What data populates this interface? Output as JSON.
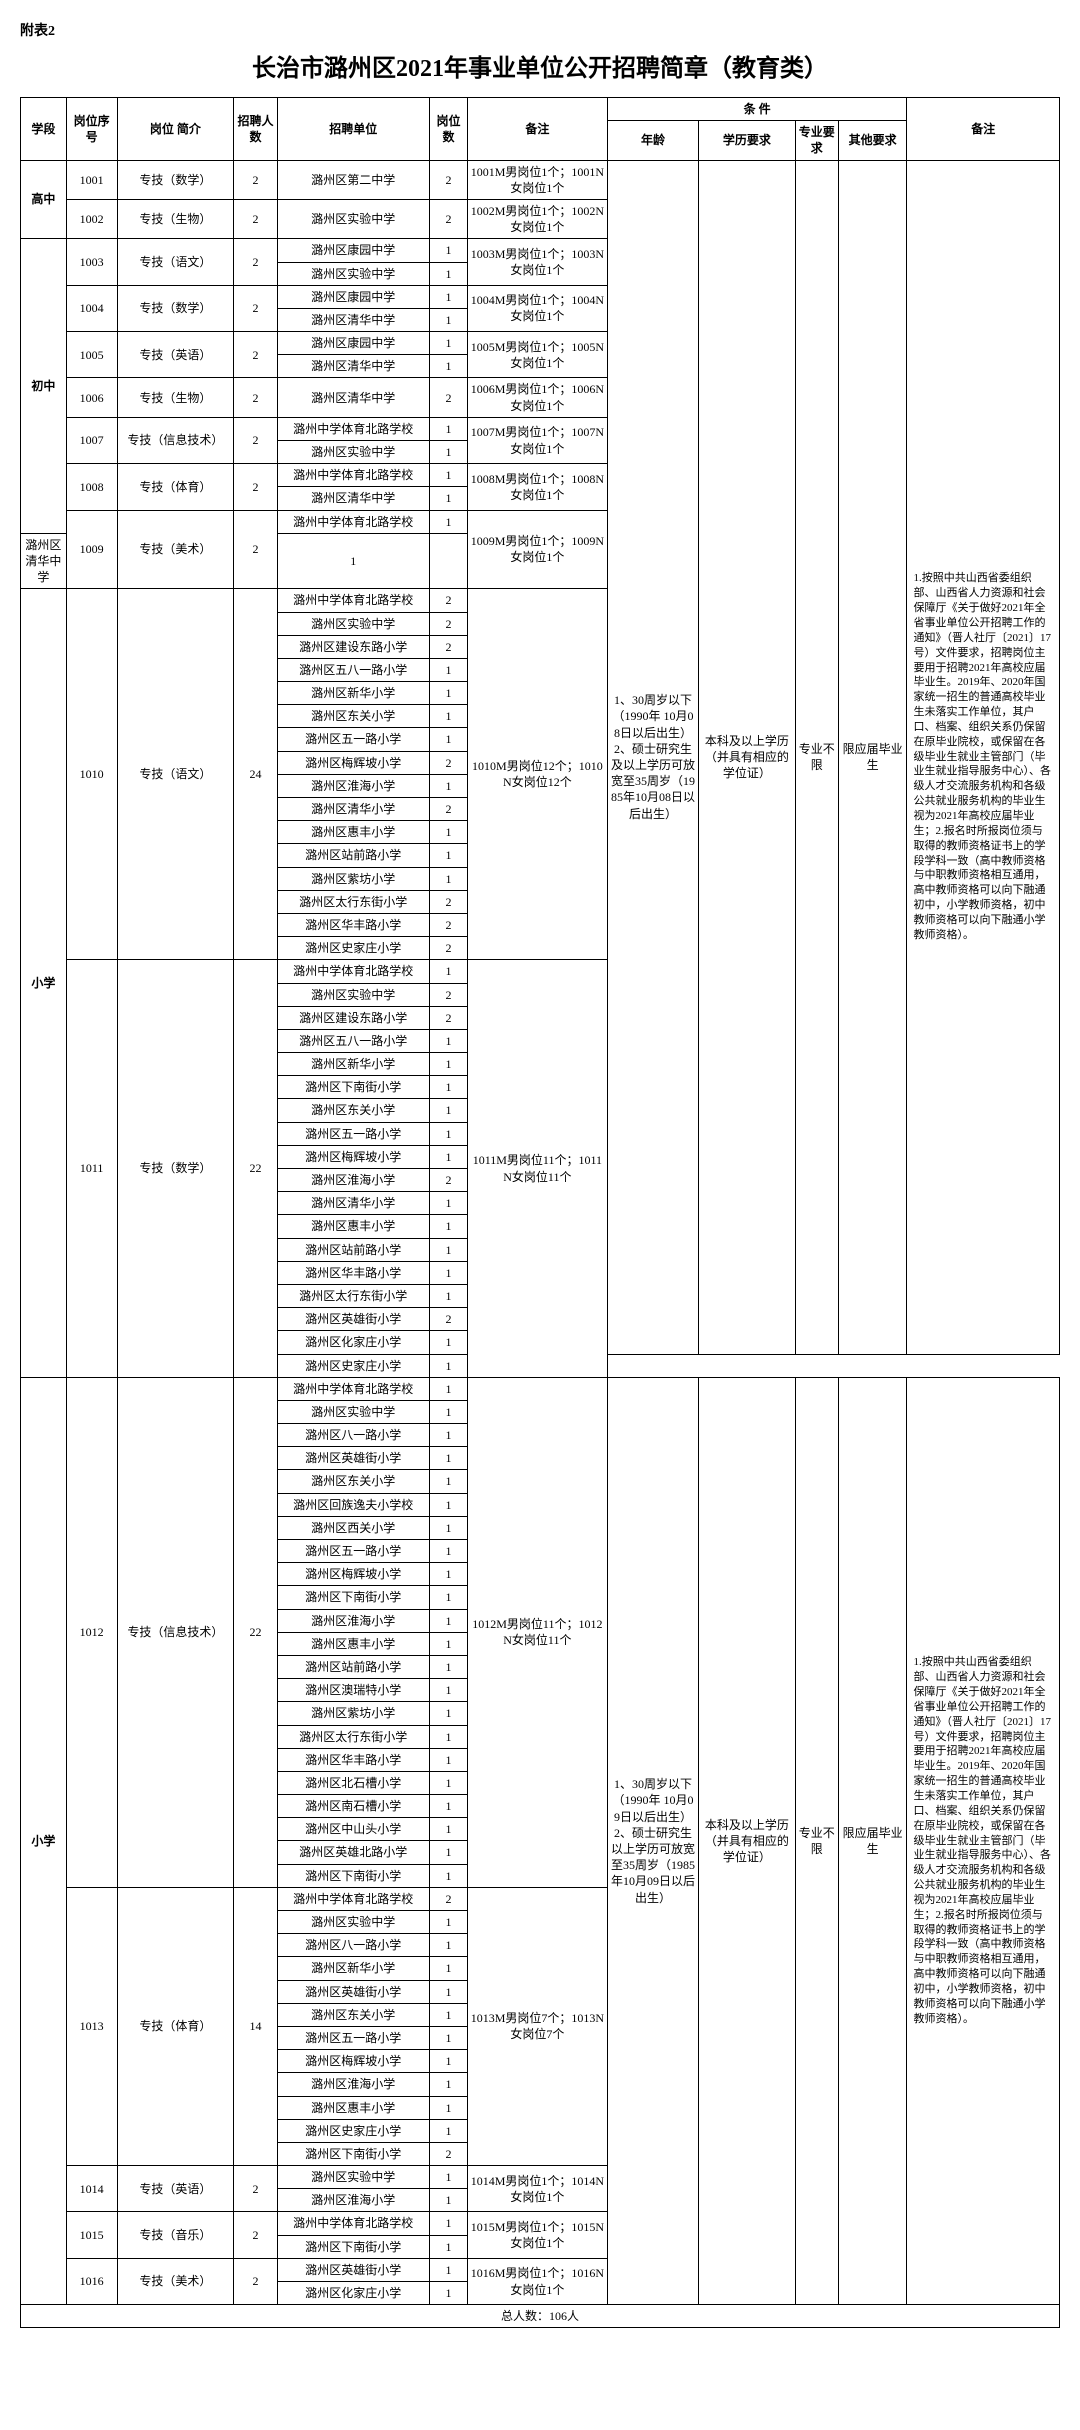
{
  "attach_label": "附表2",
  "title": "长治市潞州区2021年事业单位公开招聘简章（教育类）",
  "headers": {
    "stage": "学段",
    "pos_no": "岗位序号",
    "pos_desc": "岗位 简介",
    "count": "招聘人数",
    "unit": "招聘单位",
    "subcount": "岗位数",
    "note": "备注",
    "conditions": "条 件",
    "age": "年龄",
    "edu": "学历要求",
    "major": "专业要求",
    "other": "其他要求",
    "remark": "备注"
  },
  "stage_hs": "高中",
  "stage_ms": "初中",
  "stage_ps": "小学",
  "age1": "1、30周岁以下（1990年 10月08日以后出生）   2、硕士研究生及以上学历可放宽至35周岁（1985年10月08日以后出生）",
  "age2": "1、30周岁以下（1990年 10月09日以后出生）   2、硕士研究生以上学历可放宽至35周岁（1985年10月09日以后出生）",
  "edu1": "本科及以上学历（并具有相应的学位证）",
  "major1": "专业不限",
  "other1": "限应届毕业生",
  "remark1": "1.按照中共山西省委组织部、山西省人力资源和社会保障厅《关于做好2021年全省事业单位公开招聘工作的通知》（晋人社厅〔2021〕17号）文件要求，招聘岗位主要用于招聘2021年高校应届毕业生。2019年、2020年国家统一招生的普通高校毕业生未落实工作单位，其户口、档案、组织关系仍保留在原毕业院校，或保留在各级毕业生就业主管部门（毕业生就业指导服务中心）、各级人才交流服务机构和各级公共就业服务机构的毕业生视为2021年高校应届毕业生；2.报名时所报岗位须与取得的教师资格证书上的学段学科一致（高中教师资格与中职教师资格相互通用，高中教师资格可以向下融通初中，小学教师资格，初中教师资格可以向下融通小学教师资格）。",
  "total_label": "总人数：106人",
  "r1001": {
    "no": "1001",
    "desc": "专技（数学）",
    "cnt": "2",
    "unit": "潞州区第二中学",
    "sub": "2",
    "note": "1001M男岗位1个；1001N女岗位1个"
  },
  "r1002": {
    "no": "1002",
    "desc": "专技（生物）",
    "cnt": "2",
    "unit": "潞州区实验中学",
    "sub": "2",
    "note": "1002M男岗位1个；1002N女岗位1个"
  },
  "r1003": {
    "no": "1003",
    "desc": "专技（语文）",
    "cnt": "2",
    "u1": "潞州区康园中学",
    "s1": "1",
    "u2": "潞州区实验中学",
    "s2": "1",
    "note": "1003M男岗位1个；1003N女岗位1个"
  },
  "r1004": {
    "no": "1004",
    "desc": "专技（数学）",
    "cnt": "2",
    "u1": "潞州区康园中学",
    "s1": "1",
    "u2": "潞州区清华中学",
    "s2": "1",
    "note": "1004M男岗位1个；1004N女岗位1个"
  },
  "r1005": {
    "no": "1005",
    "desc": "专技（英语）",
    "cnt": "2",
    "u1": "潞州区康园中学",
    "s1": "1",
    "u2": "潞州区清华中学",
    "s2": "1",
    "note": "1005M男岗位1个；1005N女岗位1个"
  },
  "r1006": {
    "no": "1006",
    "desc": "专技（生物）",
    "cnt": "2",
    "unit": "潞州区清华中学",
    "sub": "2",
    "note": "1006M男岗位1个；1006N女岗位1个"
  },
  "r1007": {
    "no": "1007",
    "desc": "专技（信息技术）",
    "cnt": "2",
    "u1": "潞州中学体育北路学校",
    "s1": "1",
    "u2": "潞州区实验中学",
    "s2": "1",
    "note": "1007M男岗位1个；1007N女岗位1个"
  },
  "r1008": {
    "no": "1008",
    "desc": "专技（体育）",
    "cnt": "2",
    "u1": "潞州中学体育北路学校",
    "s1": "1",
    "u2": "潞州区清华中学",
    "s2": "1",
    "note": "1008M男岗位1个；1008N女岗位1个"
  },
  "r1009": {
    "no": "1009",
    "desc": "专技（美术）",
    "cnt": "2",
    "u1": "潞州中学体育北路学校",
    "s1": "1",
    "u2": "潞州区清华中学",
    "s2": "1",
    "note": "1009M男岗位1个；1009N女岗位1个"
  },
  "r1010": {
    "no": "1010",
    "desc": "专技（语文）",
    "cnt": "24",
    "note": "1010M男岗位12个；1010N女岗位12个",
    "units": [
      {
        "u": "潞州中学体育北路学校",
        "s": "2"
      },
      {
        "u": "潞州区实验中学",
        "s": "2"
      },
      {
        "u": "潞州区建设东路小学",
        "s": "2"
      },
      {
        "u": "潞州区五八一路小学",
        "s": "1"
      },
      {
        "u": "潞州区新华小学",
        "s": "1"
      },
      {
        "u": "潞州区东关小学",
        "s": "1"
      },
      {
        "u": "潞州区五一路小学",
        "s": "1"
      },
      {
        "u": "潞州区梅辉坡小学",
        "s": "2"
      },
      {
        "u": "潞州区淮海小学",
        "s": "1"
      },
      {
        "u": "潞州区清华小学",
        "s": "2"
      },
      {
        "u": "潞州区惠丰小学",
        "s": "1"
      },
      {
        "u": "潞州区站前路小学",
        "s": "1"
      },
      {
        "u": "潞州区紫坊小学",
        "s": "1"
      },
      {
        "u": "潞州区太行东街小学",
        "s": "2"
      },
      {
        "u": "潞州区华丰路小学",
        "s": "2"
      },
      {
        "u": "潞州区史家庄小学",
        "s": "2"
      }
    ]
  },
  "r1011": {
    "no": "1011",
    "desc": "专技（数学）",
    "cnt": "22",
    "note": "1011M男岗位11个；1011N女岗位11个",
    "units": [
      {
        "u": "潞州中学体育北路学校",
        "s": "1"
      },
      {
        "u": "潞州区实验中学",
        "s": "2"
      },
      {
        "u": "潞州区建设东路小学",
        "s": "2"
      },
      {
        "u": "潞州区五八一路小学",
        "s": "1"
      },
      {
        "u": "潞州区新华小学",
        "s": "1"
      },
      {
        "u": "潞州区下南街小学",
        "s": "1"
      },
      {
        "u": "潞州区东关小学",
        "s": "1"
      },
      {
        "u": "潞州区五一路小学",
        "s": "1"
      },
      {
        "u": "潞州区梅辉坡小学",
        "s": "1"
      },
      {
        "u": "潞州区淮海小学",
        "s": "2"
      },
      {
        "u": "潞州区清华小学",
        "s": "1"
      },
      {
        "u": "潞州区惠丰小学",
        "s": "1"
      },
      {
        "u": "潞州区站前路小学",
        "s": "1"
      },
      {
        "u": "潞州区华丰路小学",
        "s": "1"
      },
      {
        "u": "潞州区太行东街小学",
        "s": "1"
      },
      {
        "u": "潞州区英雄街小学",
        "s": "2"
      },
      {
        "u": "潞州区化家庄小学",
        "s": "1"
      },
      {
        "u": "潞州区史家庄小学",
        "s": "1"
      }
    ]
  },
  "r1012": {
    "no": "1012",
    "desc": "专技（信息技术）",
    "cnt": "22",
    "note": "1012M男岗位11个；1012N女岗位11个",
    "units": [
      {
        "u": "潞州中学体育北路学校",
        "s": "1"
      },
      {
        "u": "潞州区实验中学",
        "s": "1"
      },
      {
        "u": "潞州区八一路小学",
        "s": "1"
      },
      {
        "u": "潞州区英雄街小学",
        "s": "1"
      },
      {
        "u": "潞州区东关小学",
        "s": "1"
      },
      {
        "u": "潞州区回族逸夫小学校",
        "s": "1"
      },
      {
        "u": "潞州区西关小学",
        "s": "1"
      },
      {
        "u": "潞州区五一路小学",
        "s": "1"
      },
      {
        "u": "潞州区梅辉坡小学",
        "s": "1"
      },
      {
        "u": "潞州区下南街小学",
        "s": "1"
      },
      {
        "u": "潞州区淮海小学",
        "s": "1"
      },
      {
        "u": "潞州区惠丰小学",
        "s": "1"
      },
      {
        "u": "潞州区站前路小学",
        "s": "1"
      },
      {
        "u": "潞州区澳瑞特小学",
        "s": "1"
      },
      {
        "u": "潞州区紫坊小学",
        "s": "1"
      },
      {
        "u": "潞州区太行东街小学",
        "s": "1"
      },
      {
        "u": "潞州区华丰路小学",
        "s": "1"
      },
      {
        "u": "潞州区北石槽小学",
        "s": "1"
      },
      {
        "u": "潞州区南石槽小学",
        "s": "1"
      },
      {
        "u": "潞州区中山头小学",
        "s": "1"
      },
      {
        "u": "潞州区英雄北路小学",
        "s": "1"
      },
      {
        "u": "潞州区下南街小学",
        "s": "1"
      }
    ]
  },
  "r1013": {
    "no": "1013",
    "desc": "专技（体育）",
    "cnt": "14",
    "note": "1013M男岗位7个；1013N女岗位7个",
    "units": [
      {
        "u": "潞州中学体育北路学校",
        "s": "2"
      },
      {
        "u": "潞州区实验中学",
        "s": "1"
      },
      {
        "u": "潞州区八一路小学",
        "s": "1"
      },
      {
        "u": "潞州区新华小学",
        "s": "1"
      },
      {
        "u": "潞州区英雄街小学",
        "s": "1"
      },
      {
        "u": "潞州区东关小学",
        "s": "1"
      },
      {
        "u": "潞州区五一路小学",
        "s": "1"
      },
      {
        "u": "潞州区梅辉坡小学",
        "s": "1"
      },
      {
        "u": "潞州区淮海小学",
        "s": "1"
      },
      {
        "u": "潞州区惠丰小学",
        "s": "1"
      },
      {
        "u": "潞州区史家庄小学",
        "s": "1"
      },
      {
        "u": "潞州区下南街小学",
        "s": "2"
      }
    ]
  },
  "r1014": {
    "no": "1014",
    "desc": "专技（英语）",
    "cnt": "2",
    "u1": "潞州区实验中学",
    "s1": "1",
    "u2": "潞州区淮海小学",
    "s2": "1",
    "note": "1014M男岗位1个；1014N女岗位1个"
  },
  "r1015": {
    "no": "1015",
    "desc": "专技（音乐）",
    "cnt": "2",
    "u1": "潞州中学体育北路学校",
    "s1": "1",
    "u2": "潞州区下南街小学",
    "s2": "1",
    "note": "1015M男岗位1个；1015N女岗位1个"
  },
  "r1016": {
    "no": "1016",
    "desc": "专技（美术）",
    "cnt": "2",
    "u1": "潞州区英雄街小学",
    "s1": "1",
    "u2": "潞州区化家庄小学",
    "s2": "1",
    "note": "1016M男岗位1个；1016N女岗位1个"
  }
}
